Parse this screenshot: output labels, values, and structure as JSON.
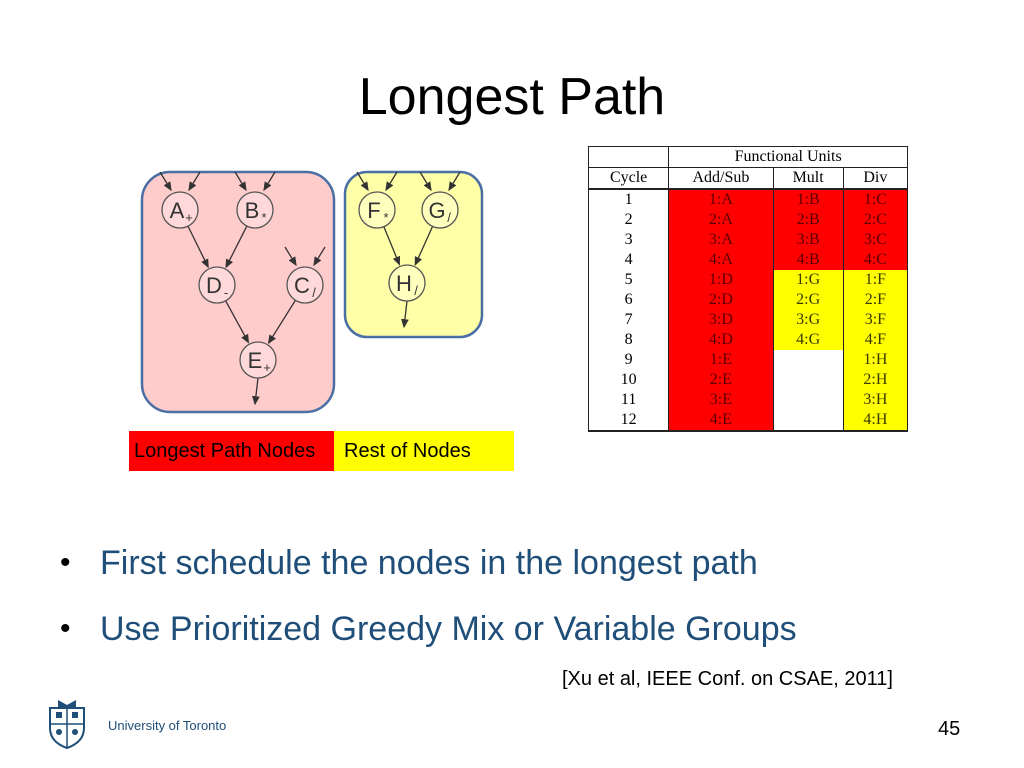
{
  "slide": {
    "title": "Longest Path",
    "page_number": "45",
    "university": "University of Toronto",
    "citation": "[Xu et al, IEEE Conf. on CSAE, 2011]"
  },
  "legend": {
    "longest_path_label": "Longest Path Nodes",
    "rest_label": "Rest of Nodes"
  },
  "colors": {
    "longest_path": "#ff0000",
    "rest": "#ffff00",
    "bullet_text": "#1f4e79",
    "graph_group_longest": "#ffcccc",
    "graph_group_rest": "#ffffa8"
  },
  "graph": {
    "nodes": [
      {
        "id": "A",
        "label": "A",
        "op": "+"
      },
      {
        "id": "B",
        "label": "B",
        "op": "*"
      },
      {
        "id": "D",
        "label": "D",
        "op": "-"
      },
      {
        "id": "C",
        "label": "C",
        "op": "/"
      },
      {
        "id": "E",
        "label": "E",
        "op": "+"
      },
      {
        "id": "F",
        "label": "F",
        "op": "*"
      },
      {
        "id": "G",
        "label": "G",
        "op": "/"
      },
      {
        "id": "H",
        "label": "H",
        "op": "/"
      }
    ],
    "edges": [
      [
        "A",
        "D"
      ],
      [
        "B",
        "D"
      ],
      [
        "D",
        "E"
      ],
      [
        "C",
        "E"
      ],
      [
        "F",
        "H"
      ],
      [
        "G",
        "H"
      ]
    ]
  },
  "table": {
    "group_header": "Functional Units",
    "columns": [
      "Cycle",
      "Add/Sub",
      "Mult",
      "Div"
    ],
    "rows": [
      {
        "cycle": "1",
        "add": "1:A",
        "mult": "1:B",
        "div": "1:C"
      },
      {
        "cycle": "2",
        "add": "2:A",
        "mult": "2:B",
        "div": "2:C"
      },
      {
        "cycle": "3",
        "add": "3:A",
        "mult": "3:B",
        "div": "3:C"
      },
      {
        "cycle": "4",
        "add": "4:A",
        "mult": "4:B",
        "div": "4:C"
      },
      {
        "cycle": "5",
        "add": "1:D",
        "mult": "1:G",
        "div": "1:F"
      },
      {
        "cycle": "6",
        "add": "2:D",
        "mult": "2:G",
        "div": "2:F"
      },
      {
        "cycle": "7",
        "add": "3:D",
        "mult": "3:G",
        "div": "3:F"
      },
      {
        "cycle": "8",
        "add": "4:D",
        "mult": "4:G",
        "div": "4:F"
      },
      {
        "cycle": "9",
        "add": "1:E",
        "mult": "",
        "div": "1:H"
      },
      {
        "cycle": "10",
        "add": "2:E",
        "mult": "",
        "div": "2:H"
      },
      {
        "cycle": "11",
        "add": "3:E",
        "mult": "",
        "div": "3:H"
      },
      {
        "cycle": "12",
        "add": "4:E",
        "mult": "",
        "div": "4:H"
      }
    ]
  },
  "bullets": [
    "First schedule the nodes in the longest path",
    "Use Prioritized Greedy Mix or Variable Groups"
  ]
}
